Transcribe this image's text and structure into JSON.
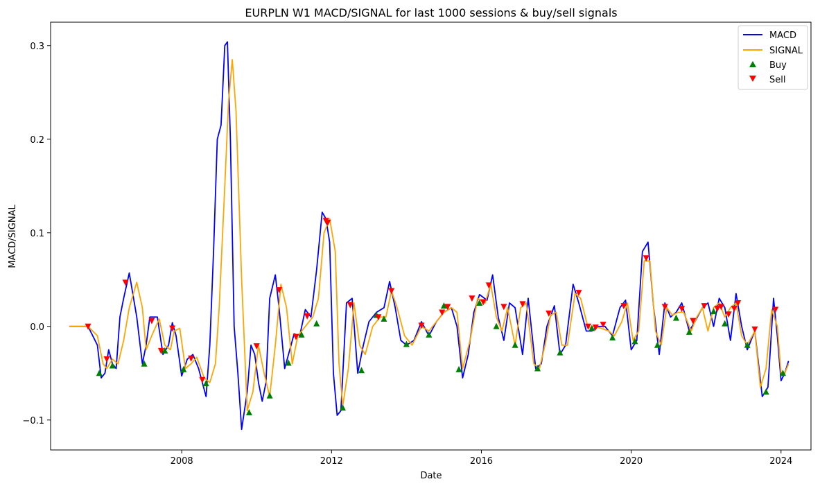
{
  "chart_data": {
    "type": "line",
    "title": "EURPLN W1 MACD/SIGNAL for last 1000 sessions & buy/sell signals",
    "xlabel": "Date",
    "ylabel": "MACD/SIGNAL",
    "xlim": [
      2004.5,
      2024.8
    ],
    "ylim": [
      -0.132,
      0.325
    ],
    "xticks": [
      2008,
      2012,
      2016,
      2020,
      2024
    ],
    "xtick_labels": [
      "2008",
      "2012",
      "2016",
      "2020",
      "2024"
    ],
    "yticks": [
      -0.1,
      0.0,
      0.1,
      0.2,
      0.3
    ],
    "ytick_labels": [
      "−0.1",
      "0.0",
      "0.1",
      "0.2",
      "0.3"
    ],
    "colors": {
      "macd": "#0000ff",
      "signal": "#ffa500",
      "buy": "#008000",
      "sell": "#ff0000"
    },
    "legend": {
      "position": "upper right",
      "entries": [
        {
          "label": "MACD",
          "kind": "line",
          "color": "#0000ff"
        },
        {
          "label": "SIGNAL",
          "kind": "line",
          "color": "#ffa500"
        },
        {
          "label": "Buy",
          "kind": "triangle-up",
          "color": "#008000"
        },
        {
          "label": "Sell",
          "kind": "triangle-down",
          "color": "#ff0000"
        }
      ]
    },
    "series": [
      {
        "name": "MACD",
        "x": [
          2005.0,
          2005.5,
          2005.75,
          2005.85,
          2005.95,
          2006.05,
          2006.15,
          2006.25,
          2006.35,
          2006.45,
          2006.6,
          2006.8,
          2006.95,
          2007.05,
          2007.15,
          2007.35,
          2007.5,
          2007.65,
          2007.75,
          2007.85,
          2008.0,
          2008.15,
          2008.3,
          2008.45,
          2008.55,
          2008.65,
          2008.75,
          2008.85,
          2008.95,
          2009.05,
          2009.15,
          2009.22,
          2009.3,
          2009.4,
          2009.5,
          2009.6,
          2009.75,
          2009.85,
          2009.95,
          2010.05,
          2010.15,
          2010.25,
          2010.35,
          2010.5,
          2010.6,
          2010.75,
          2010.85,
          2011.0,
          2011.15,
          2011.3,
          2011.45,
          2011.6,
          2011.75,
          2011.85,
          2011.95,
          2012.05,
          2012.15,
          2012.25,
          2012.4,
          2012.55,
          2012.7,
          2012.85,
          2013.0,
          2013.2,
          2013.4,
          2013.55,
          2013.7,
          2013.85,
          2014.0,
          2014.2,
          2014.4,
          2014.6,
          2014.8,
          2015.0,
          2015.2,
          2015.35,
          2015.5,
          2015.65,
          2015.8,
          2015.95,
          2016.15,
          2016.3,
          2016.45,
          2016.6,
          2016.75,
          2016.9,
          2017.1,
          2017.25,
          2017.45,
          2017.6,
          2017.75,
          2017.95,
          2018.1,
          2018.25,
          2018.45,
          2018.6,
          2018.8,
          2018.95,
          2019.1,
          2019.3,
          2019.5,
          2019.7,
          2019.85,
          2020.0,
          2020.15,
          2020.3,
          2020.45,
          2020.6,
          2020.75,
          2020.9,
          2021.05,
          2021.2,
          2021.35,
          2021.55,
          2021.7,
          2021.9,
          2022.05,
          2022.2,
          2022.35,
          2022.5,
          2022.65,
          2022.8,
          2022.95,
          2023.1,
          2023.3,
          2023.5,
          2023.65,
          2023.8,
          2023.9,
          2024.0,
          2024.1,
          2024.2
        ],
        "y": [
          0.0,
          0.0,
          -0.02,
          -0.055,
          -0.05,
          -0.025,
          -0.04,
          -0.045,
          0.01,
          0.03,
          0.057,
          0.01,
          -0.04,
          -0.02,
          0.01,
          0.01,
          -0.03,
          -0.02,
          0.004,
          -0.01,
          -0.053,
          -0.035,
          -0.03,
          -0.045,
          -0.06,
          -0.075,
          -0.02,
          0.08,
          0.2,
          0.215,
          0.3,
          0.304,
          0.2,
          0.0,
          -0.05,
          -0.11,
          -0.07,
          -0.02,
          -0.03,
          -0.06,
          -0.08,
          -0.06,
          0.03,
          0.055,
          0.02,
          -0.045,
          -0.03,
          -0.008,
          -0.01,
          0.018,
          0.01,
          0.06,
          0.122,
          0.115,
          0.09,
          -0.05,
          -0.095,
          -0.09,
          0.025,
          0.03,
          -0.05,
          -0.02,
          0.005,
          0.015,
          0.02,
          0.048,
          0.02,
          -0.015,
          -0.02,
          -0.015,
          0.005,
          -0.01,
          0.005,
          0.015,
          0.02,
          0.0,
          -0.055,
          -0.03,
          0.015,
          0.034,
          0.028,
          0.055,
          0.01,
          -0.015,
          0.025,
          0.02,
          -0.03,
          0.03,
          -0.045,
          -0.04,
          0.0,
          0.022,
          -0.03,
          -0.02,
          0.045,
          0.025,
          -0.005,
          -0.005,
          0.0,
          0.0,
          -0.01,
          0.02,
          0.028,
          -0.025,
          -0.015,
          0.08,
          0.09,
          0.02,
          -0.03,
          0.025,
          0.01,
          0.015,
          0.025,
          -0.005,
          0.005,
          0.02,
          0.025,
          0.0,
          0.03,
          0.02,
          -0.015,
          0.035,
          0.0,
          -0.025,
          -0.005,
          -0.075,
          -0.065,
          0.03,
          -0.01,
          -0.058,
          -0.05,
          -0.037
        ]
      },
      {
        "name": "SIGNAL",
        "x": [
          2005.0,
          2005.5,
          2005.75,
          2005.9,
          2006.0,
          2006.15,
          2006.3,
          2006.45,
          2006.6,
          2006.8,
          2006.95,
          2007.05,
          2007.2,
          2007.4,
          2007.55,
          2007.7,
          2007.8,
          2007.95,
          2008.1,
          2008.25,
          2008.4,
          2008.6,
          2008.75,
          2008.9,
          2009.0,
          2009.15,
          2009.25,
          2009.35,
          2009.45,
          2009.6,
          2009.75,
          2009.9,
          2010.05,
          2010.2,
          2010.35,
          2010.5,
          2010.65,
          2010.8,
          2010.95,
          2011.1,
          2011.3,
          2011.5,
          2011.65,
          2011.8,
          2011.95,
          2012.1,
          2012.2,
          2012.3,
          2012.45,
          2012.6,
          2012.75,
          2012.9,
          2013.1,
          2013.3,
          2013.45,
          2013.6,
          2013.75,
          2013.95,
          2014.15,
          2014.4,
          2014.6,
          2014.8,
          2015.0,
          2015.2,
          2015.35,
          2015.5,
          2015.7,
          2015.9,
          2016.1,
          2016.25,
          2016.4,
          2016.55,
          2016.7,
          2016.9,
          2017.05,
          2017.2,
          2017.4,
          2017.55,
          2017.7,
          2017.85,
          2018.0,
          2018.15,
          2018.3,
          2018.5,
          2018.65,
          2018.85,
          2019.0,
          2019.2,
          2019.4,
          2019.55,
          2019.75,
          2019.9,
          2020.05,
          2020.2,
          2020.35,
          2020.5,
          2020.65,
          2020.8,
          2020.95,
          2021.1,
          2021.25,
          2021.4,
          2021.6,
          2021.75,
          2021.9,
          2022.05,
          2022.2,
          2022.35,
          2022.5,
          2022.65,
          2022.8,
          2022.95,
          2023.1,
          2023.3,
          2023.45,
          2023.6,
          2023.75,
          2023.9,
          2024.0,
          2024.1,
          2024.2
        ],
        "y": [
          0.0,
          0.0,
          -0.01,
          -0.04,
          -0.045,
          -0.035,
          -0.04,
          -0.015,
          0.02,
          0.047,
          0.02,
          -0.025,
          -0.01,
          0.008,
          -0.02,
          -0.025,
          -0.005,
          -0.002,
          -0.045,
          -0.04,
          -0.033,
          -0.055,
          -0.06,
          -0.04,
          0.02,
          0.15,
          0.24,
          0.285,
          0.23,
          0.05,
          -0.09,
          -0.07,
          -0.02,
          -0.05,
          -0.075,
          -0.02,
          0.045,
          0.02,
          -0.04,
          -0.01,
          0.0,
          0.01,
          0.03,
          0.1,
          0.115,
          0.08,
          -0.04,
          -0.085,
          -0.045,
          0.025,
          -0.02,
          -0.03,
          0.0,
          0.01,
          0.01,
          0.038,
          0.02,
          -0.01,
          -0.02,
          0.0,
          -0.005,
          0.005,
          0.015,
          0.02,
          0.015,
          -0.045,
          -0.015,
          0.03,
          0.025,
          0.045,
          0.01,
          -0.005,
          0.02,
          -0.02,
          0.02,
          0.025,
          -0.04,
          -0.045,
          -0.02,
          0.012,
          0.015,
          -0.02,
          -0.02,
          0.035,
          0.03,
          -0.002,
          0.0,
          -0.002,
          -0.005,
          -0.01,
          0.005,
          0.025,
          -0.015,
          -0.005,
          0.07,
          0.07,
          -0.005,
          -0.02,
          0.02,
          0.012,
          0.015,
          0.015,
          -0.005,
          0.01,
          0.02,
          -0.005,
          0.02,
          0.025,
          0.01,
          0.02,
          0.025,
          -0.01,
          -0.02,
          -0.005,
          -0.065,
          -0.045,
          0.018,
          0.0,
          -0.05,
          -0.05,
          -0.04
        ]
      }
    ],
    "buy_signals": {
      "x": [
        2005.8,
        2006.15,
        2007.0,
        2007.55,
        2008.05,
        2008.65,
        2009.8,
        2010.35,
        2010.85,
        2011.2,
        2011.6,
        2012.3,
        2012.8,
        2013.2,
        2013.4,
        2014.0,
        2014.6,
        2015.0,
        2015.4,
        2015.95,
        2016.4,
        2016.9,
        2017.5,
        2018.1,
        2018.95,
        2019.5,
        2020.1,
        2020.7,
        2021.2,
        2021.55,
        2022.2,
        2022.5,
        2023.1,
        2023.6,
        2024.05
      ],
      "y": [
        -0.05,
        -0.042,
        -0.04,
        -0.026,
        -0.046,
        -0.061,
        -0.092,
        -0.074,
        -0.039,
        -0.009,
        0.003,
        -0.087,
        -0.047,
        0.012,
        0.008,
        -0.019,
        -0.009,
        0.022,
        -0.046,
        0.025,
        0.0,
        -0.02,
        -0.045,
        -0.028,
        -0.002,
        -0.012,
        -0.016,
        -0.02,
        0.009,
        -0.006,
        0.016,
        0.003,
        -0.02,
        -0.07,
        -0.05
      ]
    },
    "sell_signals": {
      "x": [
        2005.5,
        2006.0,
        2006.5,
        2007.2,
        2007.45,
        2007.75,
        2008.25,
        2008.55,
        2010.0,
        2010.6,
        2011.05,
        2011.35,
        2011.85,
        2011.9,
        2012.5,
        2013.25,
        2013.6,
        2014.4,
        2014.95,
        2015.1,
        2015.75,
        2016.05,
        2016.2,
        2016.6,
        2017.1,
        2017.8,
        2018.6,
        2018.85,
        2019.05,
        2019.25,
        2019.8,
        2020.4,
        2020.9,
        2021.35,
        2021.65,
        2021.95,
        2022.3,
        2022.4,
        2022.6,
        2022.75,
        2022.85,
        2023.3,
        2023.85
      ],
      "y": [
        0.0,
        -0.035,
        0.047,
        0.006,
        -0.026,
        -0.002,
        -0.034,
        -0.057,
        -0.021,
        0.039,
        -0.011,
        0.011,
        0.113,
        0.111,
        0.023,
        0.01,
        0.038,
        0.001,
        0.015,
        0.021,
        0.03,
        0.026,
        0.044,
        0.021,
        0.024,
        0.014,
        0.036,
        0.0,
        -0.001,
        0.002,
        0.022,
        0.073,
        0.021,
        0.019,
        0.006,
        0.022,
        0.019,
        0.021,
        0.013,
        0.019,
        0.025,
        -0.003,
        0.018
      ]
    }
  }
}
